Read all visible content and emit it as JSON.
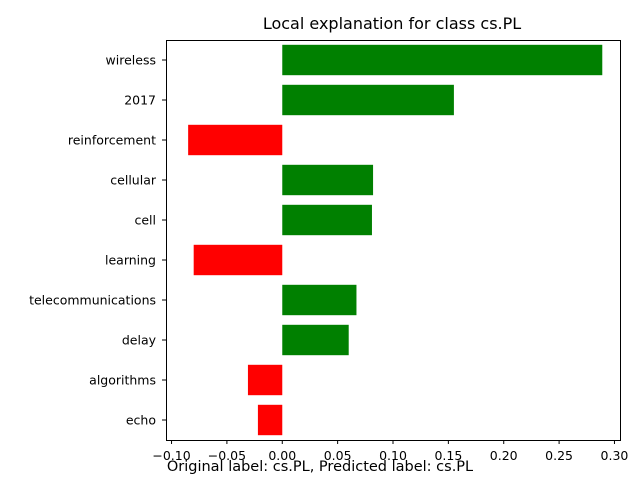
{
  "chart_data": {
    "type": "bar",
    "orientation": "horizontal",
    "title": "Local explanation for class cs.PL",
    "categories": [
      "wireless",
      "2017",
      "reinforcement",
      "cellular",
      "cell",
      "learning",
      "telecommunications",
      "delay",
      "algorithms",
      "echo"
    ],
    "values": [
      0.289,
      0.155,
      -0.085,
      0.082,
      0.081,
      -0.08,
      0.067,
      0.06,
      -0.031,
      -0.022
    ],
    "xlim": [
      -0.105,
      0.305
    ],
    "xticks": [
      "−0.10",
      "−0.05",
      "0.00",
      "0.05",
      "0.10",
      "0.15",
      "0.20",
      "0.25",
      "0.30"
    ],
    "xtick_values": [
      -0.1,
      -0.05,
      0.0,
      0.05,
      0.1,
      0.15,
      0.2,
      0.25,
      0.3
    ],
    "positive_color": "#008000",
    "negative_color": "#ff0000"
  },
  "caption": "Original label: cs.PL, Predicted label: cs.PL"
}
